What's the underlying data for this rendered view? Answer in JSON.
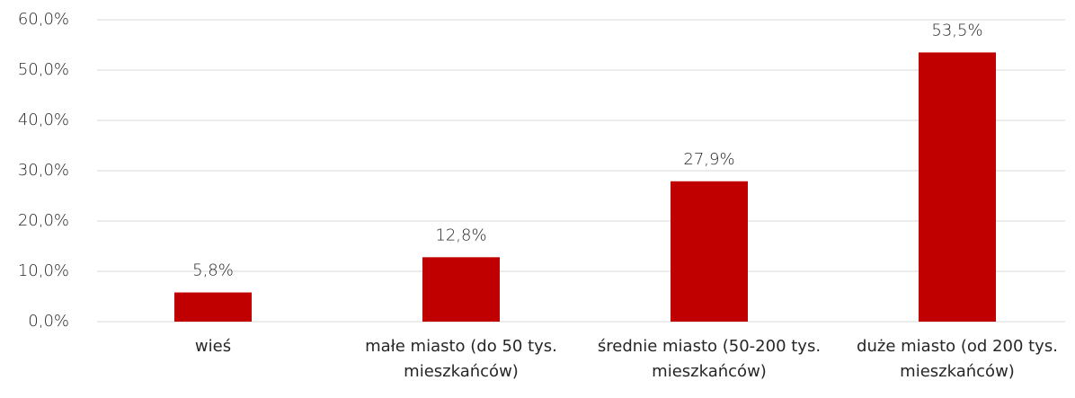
{
  "chart_data": {
    "type": "bar",
    "categories": [
      "wieś",
      "małe miasto (do 50 tys. mieszkańców)",
      "średnie miasto (50-200 tys. mieszkańców)",
      "duże miasto (od 200 tys. mieszkańców)"
    ],
    "values": [
      5.8,
      12.8,
      27.9,
      53.5
    ],
    "value_labels": [
      "5,8%",
      "12,8%",
      "27,9%",
      "53,5%"
    ],
    "color": "#c00000",
    "ylim": [
      0,
      60
    ],
    "yticks": [
      {
        "value": 0,
        "label": "0,0%"
      },
      {
        "value": 10,
        "label": "10,0%"
      },
      {
        "value": 20,
        "label": "20,0%"
      },
      {
        "value": 30,
        "label": "30,0%"
      },
      {
        "value": 40,
        "label": "40,0%"
      },
      {
        "value": 50,
        "label": "50,0%"
      },
      {
        "value": 60,
        "label": "60,0%"
      }
    ],
    "grid": true
  }
}
